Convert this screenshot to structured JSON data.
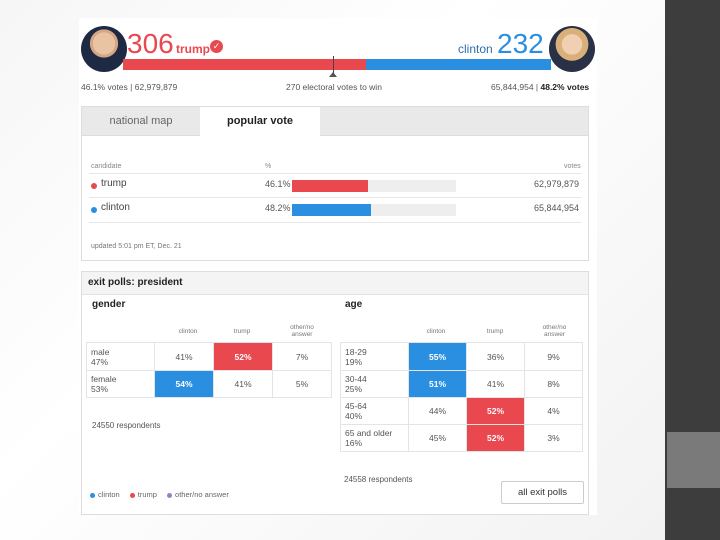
{
  "header": {
    "trump": {
      "ev": "306",
      "name": "trump",
      "popular": "46.1% votes | 62,979,879"
    },
    "clinton": {
      "ev": "232",
      "name": "clinton",
      "popular_votes": "65,844,954 | ",
      "popular_pct": "48.2% votes"
    },
    "threshold": "270 electoral votes to win",
    "trump_share": 0.5688
  },
  "tabs": {
    "map": "national map",
    "popular": "popular vote"
  },
  "popular_vote": {
    "col_candidate": "candidate",
    "col_pct": "%",
    "col_votes": "votes",
    "rows": [
      {
        "name": "trump",
        "pct": "46.1%",
        "votes": "62,979,879",
        "fraction": 0.461,
        "color": "#e9484f"
      },
      {
        "name": "clinton",
        "pct": "48.2%",
        "votes": "65,844,954",
        "fraction": 0.482,
        "color": "#2a8fe0"
      }
    ],
    "updated": "updated 5:01 pm ET, Dec. 21"
  },
  "exit_polls": {
    "title": "exit polls: president",
    "gender": {
      "title": "gender",
      "headers": [
        "clinton",
        "trump",
        "other/no answer"
      ],
      "rows": [
        {
          "label1": "male",
          "label2": "47%",
          "clinton": "41%",
          "trump": "52%",
          "other": "7%"
        },
        {
          "label1": "female",
          "label2": "53%",
          "clinton": "54%",
          "trump": "41%",
          "other": "5%"
        }
      ],
      "respondents": "24550 respondents"
    },
    "age": {
      "title": "age",
      "headers": [
        "clinton",
        "trump",
        "other/no answer"
      ],
      "rows": [
        {
          "label1": "18-29",
          "label2": "19%",
          "clinton": "55%",
          "trump": "36%",
          "other": "9%"
        },
        {
          "label1": "30-44",
          "label2": "25%",
          "clinton": "51%",
          "trump": "41%",
          "other": "8%"
        },
        {
          "label1": "45-64",
          "label2": "40%",
          "clinton": "44%",
          "trump": "52%",
          "other": "4%"
        },
        {
          "label1": "65 and older",
          "label2": "16%",
          "clinton": "45%",
          "trump": "52%",
          "other": "3%"
        }
      ],
      "respondents": "24558 respondents"
    },
    "legend": [
      "clinton",
      "trump",
      "other/no answer"
    ],
    "all_button": "all exit polls"
  },
  "colors": {
    "trump": "#e9484f",
    "clinton": "#2a8fe0",
    "other": "#9b7fc4"
  },
  "icons": [
    "check-icon",
    "trump-avatar",
    "clinton-avatar"
  ]
}
